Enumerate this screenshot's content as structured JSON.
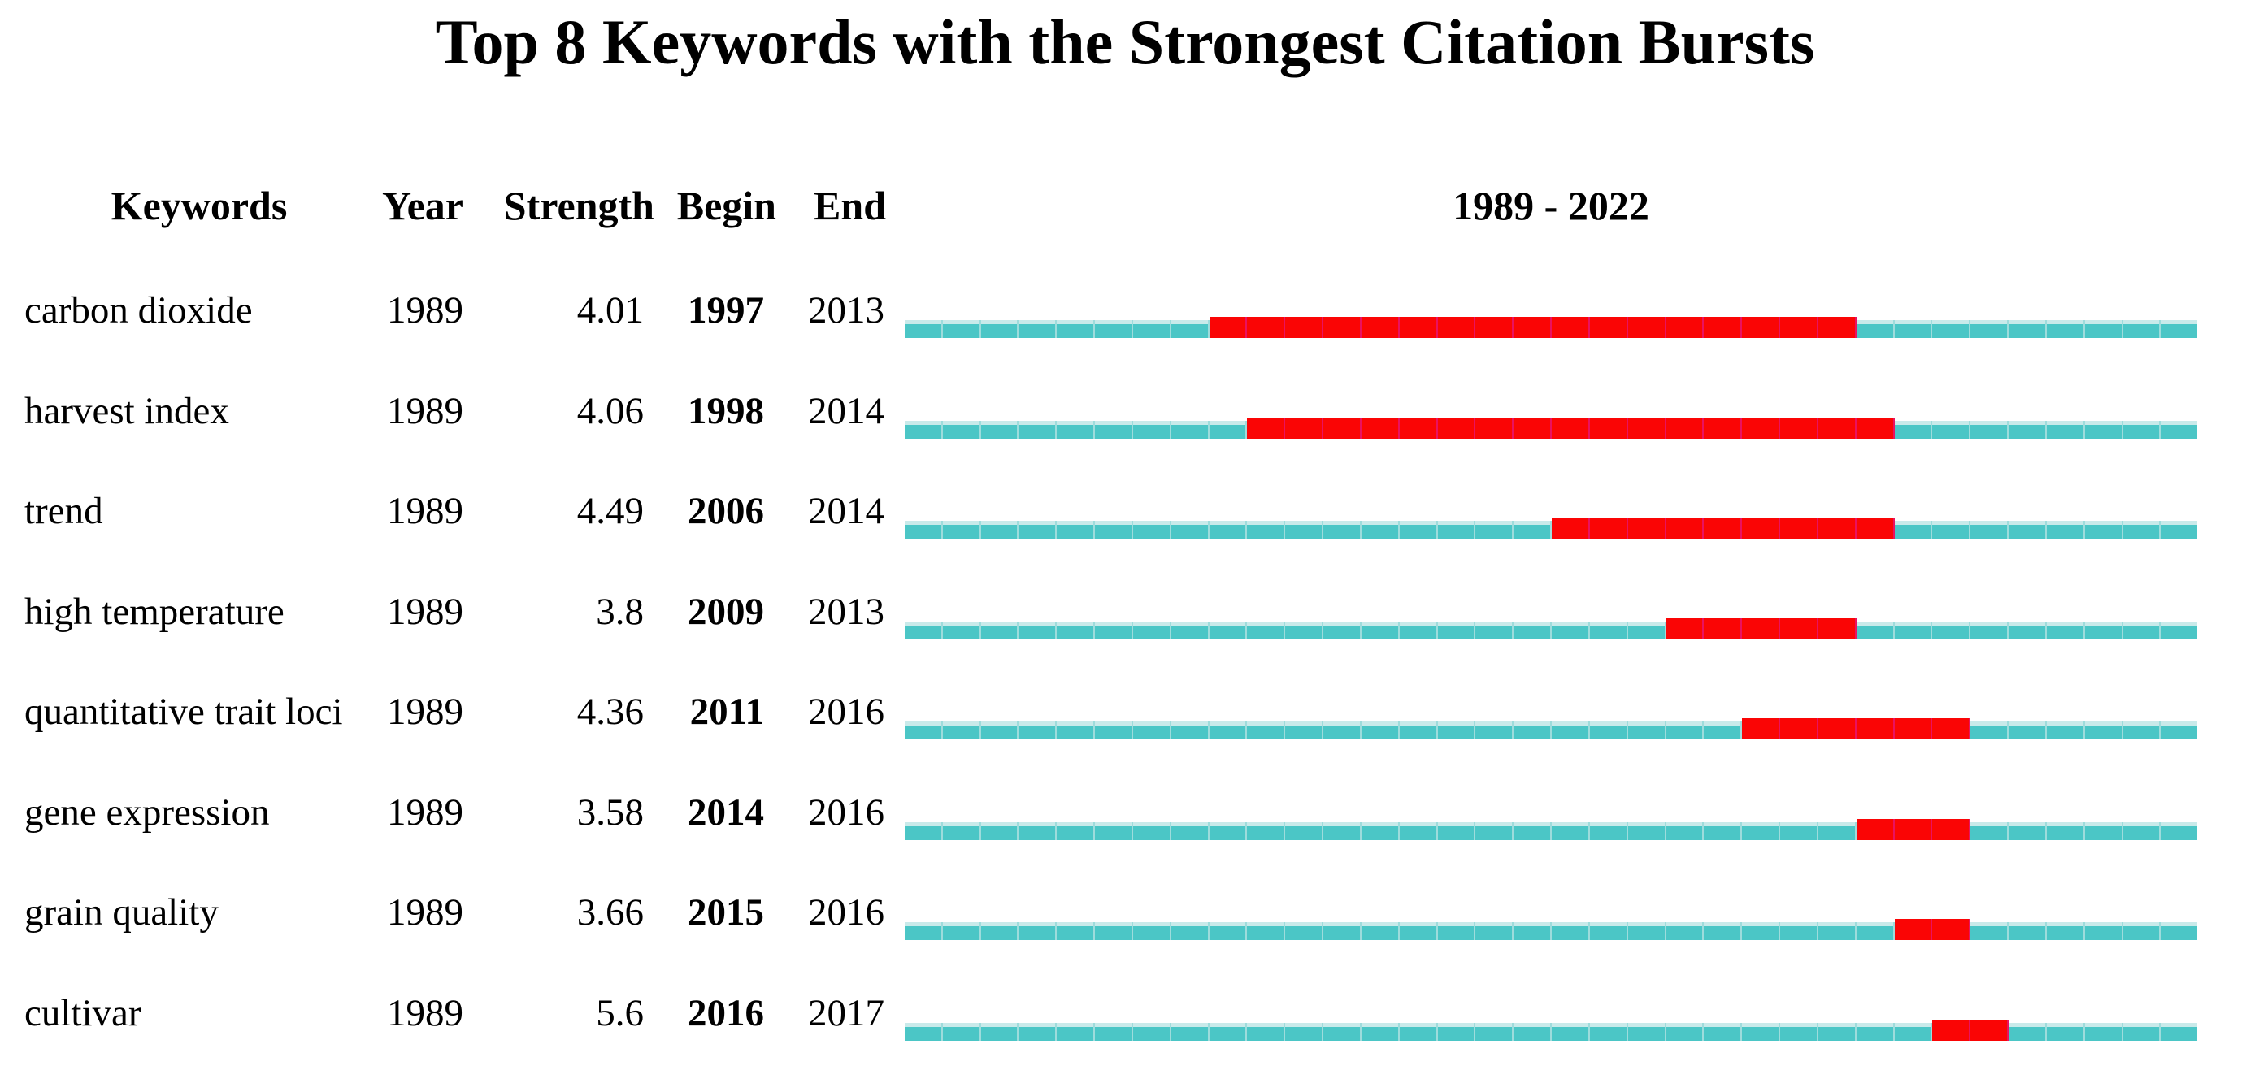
{
  "title": "Top 8 Keywords with the Strongest Citation Bursts",
  "headers": {
    "keywords": "Keywords",
    "year": "Year",
    "strength": "Strength",
    "begin": "Begin",
    "end": "End",
    "period": "1989 - 2022"
  },
  "rows": [
    {
      "keyword": "carbon dioxide",
      "year": "1989",
      "strength": "4.01",
      "begin": "1997",
      "end": "2013"
    },
    {
      "keyword": "harvest index",
      "year": "1989",
      "strength": "4.06",
      "begin": "1998",
      "end": "2014"
    },
    {
      "keyword": "trend",
      "year": "1989",
      "strength": "4.49",
      "begin": "2006",
      "end": "2014"
    },
    {
      "keyword": "high temperature",
      "year": "1989",
      "strength": "3.8",
      "begin": "2009",
      "end": "2013"
    },
    {
      "keyword": "quantitative trait loci",
      "year": "1989",
      "strength": "4.36",
      "begin": "2011",
      "end": "2016"
    },
    {
      "keyword": "gene expression",
      "year": "1989",
      "strength": "3.58",
      "begin": "2014",
      "end": "2016"
    },
    {
      "keyword": "grain quality",
      "year": "1989",
      "strength": "3.66",
      "begin": "2015",
      "end": "2016"
    },
    {
      "keyword": "cultivar",
      "year": "1989",
      "strength": "5.6",
      "begin": "2016",
      "end": "2017"
    }
  ],
  "colors": {
    "background": "#FFFFFF",
    "text": "#000000",
    "teal": "#4BC6C6",
    "teal_top_edge": "#C9EAEA",
    "teal_separator": "#9EDCDC",
    "red": "#FA0505",
    "red_separator": "#EA1160"
  },
  "chart_data": {
    "type": "gantt",
    "title": "Top 8 Keywords with the Strongest Citation Bursts",
    "timeline_range": [
      1989,
      2022
    ],
    "timeline_label": "1989 - 2022",
    "columns": [
      "Keywords",
      "Year",
      "Strength",
      "Begin",
      "End"
    ],
    "rows": [
      {
        "keyword": "carbon dioxide",
        "year": 1989,
        "strength": 4.01,
        "burst_begin": 1997,
        "burst_end": 2013
      },
      {
        "keyword": "harvest index",
        "year": 1989,
        "strength": 4.06,
        "burst_begin": 1998,
        "burst_end": 2014
      },
      {
        "keyword": "trend",
        "year": 1989,
        "strength": 4.49,
        "burst_begin": 2006,
        "burst_end": 2014
      },
      {
        "keyword": "high temperature",
        "year": 1989,
        "strength": 3.8,
        "burst_begin": 2009,
        "burst_end": 2013
      },
      {
        "keyword": "quantitative trait loci",
        "year": 1989,
        "strength": 4.36,
        "burst_begin": 2011,
        "burst_end": 2016
      },
      {
        "keyword": "gene expression",
        "year": 1989,
        "strength": 3.58,
        "burst_begin": 2014,
        "burst_end": 2016
      },
      {
        "keyword": "grain quality",
        "year": 1989,
        "strength": 3.66,
        "burst_begin": 2015,
        "burst_end": 2016
      },
      {
        "keyword": "cultivar",
        "year": 1989,
        "strength": 5.6,
        "burst_begin": 2016,
        "burst_end": 2017
      }
    ],
    "encoding": {
      "red_segment": "burst period (begin-end, inclusive, per-year cells)",
      "teal_segment": "non-burst years within 1989-2022"
    },
    "legend_position": "none",
    "grid": "per-year cell separators on timeline"
  }
}
